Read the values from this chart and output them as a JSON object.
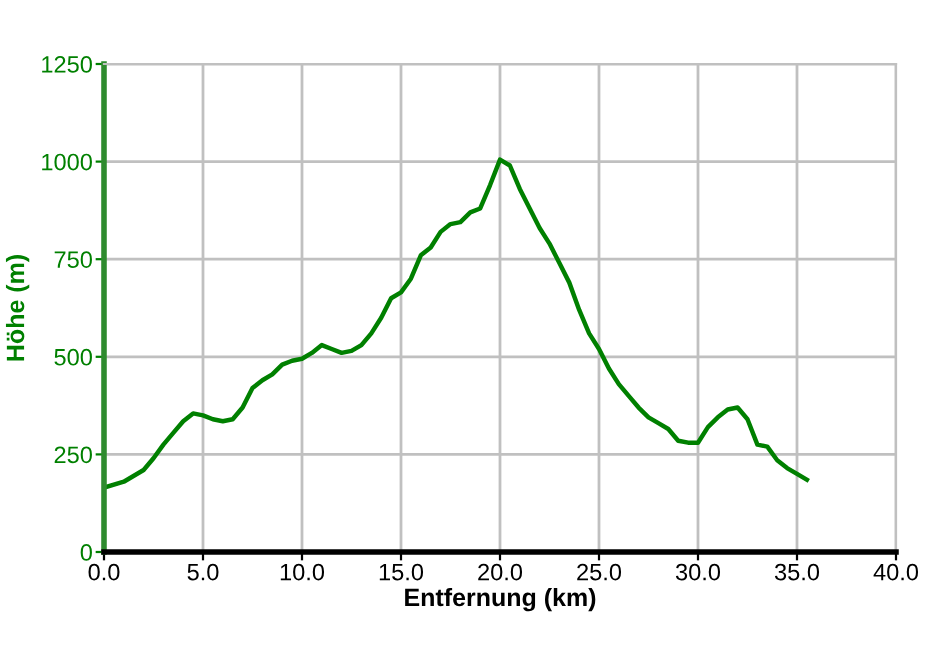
{
  "chart_data": {
    "type": "line",
    "xlabel": "Entfernung (km)",
    "ylabel": "Höhe (m)",
    "x": [
      0,
      1,
      2,
      2.5,
      3,
      3.5,
      4,
      4.5,
      5,
      5.5,
      6,
      6.5,
      7,
      7.5,
      8,
      8.5,
      9,
      9.5,
      10,
      10.5,
      11,
      11.5,
      12,
      12.5,
      13,
      13.5,
      14,
      14.5,
      15,
      15.5,
      16,
      16.5,
      17,
      17.5,
      18,
      18.5,
      19,
      19.5,
      20,
      20.5,
      21,
      21.5,
      22,
      22.5,
      23,
      23.5,
      24,
      24.5,
      25,
      25.5,
      26,
      26.5,
      27,
      27.5,
      28,
      28.5,
      29,
      29.5,
      30,
      30.5,
      31,
      31.5,
      32,
      32.5,
      33,
      33.5,
      34,
      34.5,
      35,
      35.5
    ],
    "series": [
      {
        "color": "#008000",
        "values": [
          165,
          180,
          210,
          240,
          275,
          305,
          335,
          355,
          350,
          340,
          335,
          340,
          370,
          420,
          440,
          455,
          480,
          490,
          495,
          510,
          530,
          520,
          510,
          515,
          530,
          560,
          600,
          650,
          665,
          700,
          760,
          780,
          820,
          840,
          845,
          870,
          880,
          940,
          1005,
          990,
          930,
          880,
          830,
          790,
          740,
          690,
          620,
          560,
          520,
          470,
          430,
          400,
          370,
          345,
          330,
          315,
          285,
          280,
          280,
          320,
          345,
          365,
          370,
          340,
          275,
          270,
          235,
          215,
          200,
          185
        ]
      }
    ],
    "xlim": [
      0,
      40
    ],
    "ylim": [
      0,
      1250
    ],
    "xticks": [
      {
        "value": 0,
        "label": "0.0"
      },
      {
        "value": 5,
        "label": "5.0"
      },
      {
        "value": 10,
        "label": "10.0"
      },
      {
        "value": 15,
        "label": "15.0"
      },
      {
        "value": 20,
        "label": "20.0"
      },
      {
        "value": 25,
        "label": "25.0"
      },
      {
        "value": 30,
        "label": "30.0"
      },
      {
        "value": 35,
        "label": "35.0"
      },
      {
        "value": 40,
        "label": "40.0"
      }
    ],
    "yticks": [
      0,
      250,
      500,
      750,
      1000,
      1250
    ],
    "grid": true,
    "legend": false
  }
}
